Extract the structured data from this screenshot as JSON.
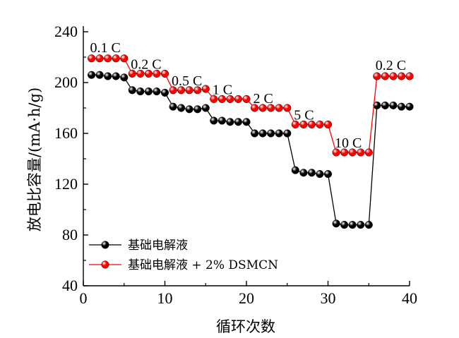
{
  "chart_data": {
    "type": "scatter",
    "xlabel": "循环次数",
    "ylabel": "放电比容量/(mA·h/g)",
    "xlim": [
      0,
      40
    ],
    "ylim": [
      40,
      240
    ],
    "xticks": [
      "0",
      "10",
      "20",
      "30",
      "40"
    ],
    "yticks": [
      "40",
      "80",
      "120",
      "160",
      "200",
      "240"
    ],
    "grid": false,
    "legend_position": "bottom-left",
    "x": [
      1,
      2,
      3,
      4,
      5,
      6,
      7,
      8,
      9,
      10,
      11,
      12,
      13,
      14,
      15,
      16,
      17,
      18,
      19,
      20,
      21,
      22,
      23,
      24,
      25,
      26,
      27,
      28,
      29,
      30,
      31,
      32,
      33,
      34,
      35,
      36,
      37,
      38,
      39,
      40
    ],
    "series": [
      {
        "name": "基础电解液",
        "color": "#000000",
        "values": [
          206,
          206,
          205,
          205,
          204,
          194,
          193,
          193,
          193,
          192,
          181,
          180,
          179,
          179,
          180,
          170,
          170,
          169,
          169,
          169,
          160,
          160,
          160,
          160,
          160,
          131,
          129,
          129,
          128,
          128,
          89,
          88,
          88,
          88,
          88,
          182,
          182,
          182,
          181,
          181
        ]
      },
      {
        "name": "基础电解液 + 2% DSMCN",
        "color": "#ff0000",
        "values": [
          219,
          219,
          219,
          219,
          219,
          207,
          207,
          207,
          207,
          207,
          194,
          194,
          194,
          194,
          195,
          187,
          187,
          187,
          187,
          187,
          180,
          180,
          180,
          180,
          180,
          167,
          167,
          167,
          167,
          167,
          145,
          145,
          145,
          145,
          145,
          205,
          205,
          205,
          205,
          205
        ]
      }
    ],
    "annotations": [
      {
        "text": "0.1 C",
        "x": 1,
        "y": 225
      },
      {
        "text": "0.2 C",
        "x": 6,
        "y": 212
      },
      {
        "text": "0.5 C",
        "x": 11,
        "y": 199
      },
      {
        "text": "1 C",
        "x": 16,
        "y": 192
      },
      {
        "text": "2 C",
        "x": 21,
        "y": 185
      },
      {
        "text": "5 C",
        "x": 26,
        "y": 172
      },
      {
        "text": "10 C",
        "x": 31,
        "y": 150
      },
      {
        "text": "0.2 C",
        "x": 36,
        "y": 211
      }
    ]
  }
}
